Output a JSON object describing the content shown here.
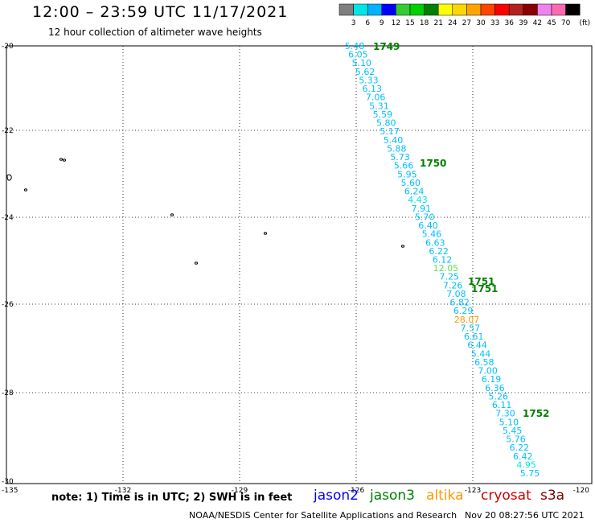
{
  "title": "12:00 – 23:59 UTC 11/17/2021",
  "subtitle": "12 hour collection of altimeter wave heights",
  "legend": {
    "unit": "(ft)",
    "ticks": [
      "3",
      "6",
      "9",
      "12",
      "15",
      "18",
      "21",
      "24",
      "27",
      "30",
      "33",
      "36",
      "39",
      "42",
      "45",
      "70"
    ],
    "colors": [
      "#7f7f7f",
      "#00e5e5",
      "#00b2ff",
      "#0000ff",
      "#33cc33",
      "#00d000",
      "#008000",
      "#ffff00",
      "#ffd700",
      "#ffa500",
      "#ff4500",
      "#ff0000",
      "#b22222",
      "#8b0000",
      "#ee82ee",
      "#ff69b4",
      "#000000"
    ]
  },
  "axes": {
    "lat_labels": [
      "-20",
      "-22",
      "-24",
      "-26",
      "-28",
      "-30"
    ],
    "lon_labels": [
      "-135",
      "-132",
      "-129",
      "-126",
      "-123",
      "-120"
    ]
  },
  "track_labels": [
    "1749",
    "1750",
    "1751",
    "1751",
    "1752"
  ],
  "track": [
    {
      "v": "5.48",
      "c": "#00bfff"
    },
    {
      "v": "6.05",
      "c": "#00bfff"
    },
    {
      "v": "5.10",
      "c": "#00bfff"
    },
    {
      "v": "5.62",
      "c": "#00bfff"
    },
    {
      "v": "5.33",
      "c": "#00bfff"
    },
    {
      "v": "6.13",
      "c": "#00bfff"
    },
    {
      "v": "7.06",
      "c": "#00bfff"
    },
    {
      "v": "5.31",
      "c": "#00bfff"
    },
    {
      "v": "5.59",
      "c": "#00bfff"
    },
    {
      "v": "5.80",
      "c": "#00bfff"
    },
    {
      "v": "5.17",
      "c": "#00bfff"
    },
    {
      "v": "5.40",
      "c": "#00bfff"
    },
    {
      "v": "5.88",
      "c": "#00bfff"
    },
    {
      "v": "5.73",
      "c": "#00bfff"
    },
    {
      "v": "5.66",
      "c": "#00bfff"
    },
    {
      "v": "5.95",
      "c": "#00bfff"
    },
    {
      "v": "5.60",
      "c": "#00bfff"
    },
    {
      "v": "6.24",
      "c": "#00bfff"
    },
    {
      "v": "4.43",
      "c": "#00e5e5"
    },
    {
      "v": "7.91",
      "c": "#00bfff"
    },
    {
      "v": "5.70",
      "c": "#00bfff"
    },
    {
      "v": "6.40",
      "c": "#00bfff"
    },
    {
      "v": "5.46",
      "c": "#00bfff"
    },
    {
      "v": "6.63",
      "c": "#00bfff"
    },
    {
      "v": "6.22",
      "c": "#00bfff"
    },
    {
      "v": "6.12",
      "c": "#00bfff"
    },
    {
      "v": "12.05",
      "c": "#66dd55"
    },
    {
      "v": "7.25",
      "c": "#00bfff"
    },
    {
      "v": "7.26",
      "c": "#00bfff"
    },
    {
      "v": "7.08",
      "c": "#00bfff"
    },
    {
      "v": "6.82",
      "c": "#00bfff"
    },
    {
      "v": "6.29",
      "c": "#00bfff"
    },
    {
      "v": "28.07",
      "c": "#ff9900"
    },
    {
      "v": "7.57",
      "c": "#00bfff"
    },
    {
      "v": "6.61",
      "c": "#00bfff"
    },
    {
      "v": "6.44",
      "c": "#00bfff"
    },
    {
      "v": "5.44",
      "c": "#00bfff"
    },
    {
      "v": "6.58",
      "c": "#00bfff"
    },
    {
      "v": "7.00",
      "c": "#00bfff"
    },
    {
      "v": "6.19",
      "c": "#00bfff"
    },
    {
      "v": "6.36",
      "c": "#00bfff"
    },
    {
      "v": "5.26",
      "c": "#00bfff"
    },
    {
      "v": "6.11",
      "c": "#00bfff"
    },
    {
      "v": "7.30",
      "c": "#00bfff"
    },
    {
      "v": "5.10",
      "c": "#00bfff"
    },
    {
      "v": "5.45",
      "c": "#00bfff"
    },
    {
      "v": "5.76",
      "c": "#00bfff"
    },
    {
      "v": "6.22",
      "c": "#00bfff"
    },
    {
      "v": "6.42",
      "c": "#00bfff"
    },
    {
      "v": "4.95",
      "c": "#00e5e5"
    },
    {
      "v": "5.75",
      "c": "#00bfff"
    }
  ],
  "footer": {
    "note": "note:  1) Time is in UTC;  2) SWH is in feet",
    "satellites": [
      {
        "name": "jason2",
        "color": "#0000ff"
      },
      {
        "name": "jason3",
        "color": "#008000"
      },
      {
        "name": "altika",
        "color": "#ff9900"
      },
      {
        "name": "cryosat",
        "color": "#cc0000"
      },
      {
        "name": "s3a",
        "color": "#800000"
      }
    ],
    "credit": "NOAA/NESDIS Center for Satellite Applications and Research",
    "timestamp": "Nov 20 08:27:56 UTC 2021"
  }
}
